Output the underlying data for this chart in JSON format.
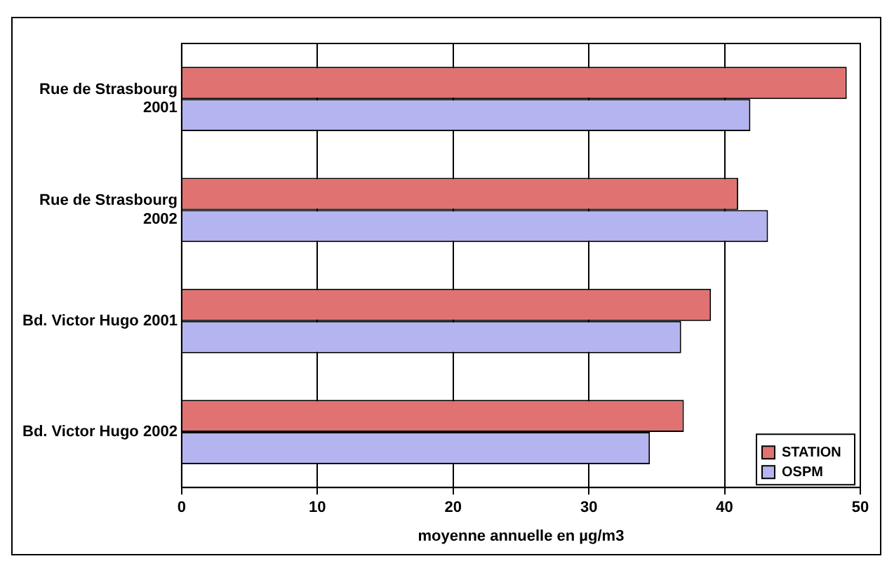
{
  "chart_data": {
    "type": "bar",
    "orientation": "horizontal",
    "xlabel": "moyenne annuelle en µg/m3",
    "categories": [
      "Rue de Strasbourg 2001",
      "Rue de Strasbourg 2002",
      "Bd. Victor Hugo 2001",
      "Bd. Victor Hugo 2002"
    ],
    "series": [
      {
        "name": "STATION",
        "color": "#e07272",
        "values": [
          49.0,
          41.0,
          39.0,
          37.0
        ]
      },
      {
        "name": "OSPM",
        "color": "#b4b4f0",
        "values": [
          41.9,
          43.2,
          36.8,
          34.5
        ]
      }
    ],
    "xlim": [
      0,
      50
    ],
    "xticks": [
      0,
      10,
      20,
      30,
      40,
      50
    ],
    "grid": "x",
    "legend": "bottom right"
  }
}
